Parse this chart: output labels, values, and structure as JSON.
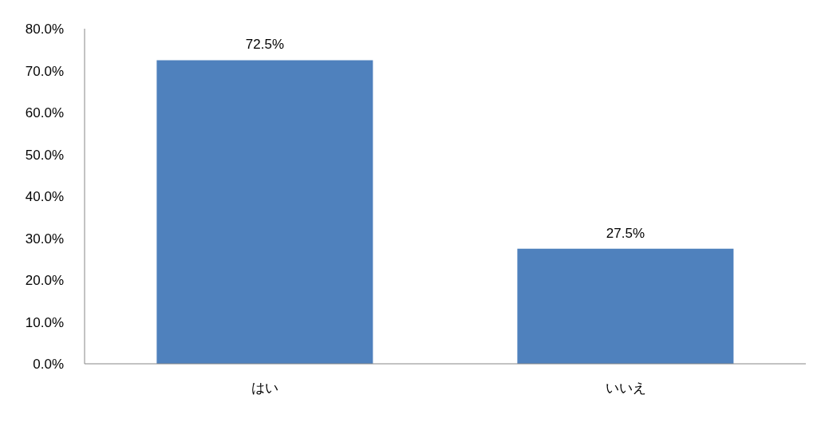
{
  "chart_data": {
    "type": "bar",
    "categories": [
      "はい",
      "いいえ"
    ],
    "values": [
      72.5,
      27.5
    ],
    "value_labels": [
      "72.5%",
      "27.5%"
    ],
    "color": "#4f81bd",
    "ylim": [
      0,
      80
    ],
    "yticks": [
      {
        "value": 0,
        "label": "0.0%"
      },
      {
        "value": 10,
        "label": "10.0%"
      },
      {
        "value": 20,
        "label": "20.0%"
      },
      {
        "value": 30,
        "label": "30.0%"
      },
      {
        "value": 40,
        "label": "40.0%"
      },
      {
        "value": 50,
        "label": "50.0%"
      },
      {
        "value": 60,
        "label": "60.0%"
      },
      {
        "value": 70,
        "label": "70.0%"
      },
      {
        "value": 80,
        "label": "80.0%"
      }
    ]
  }
}
